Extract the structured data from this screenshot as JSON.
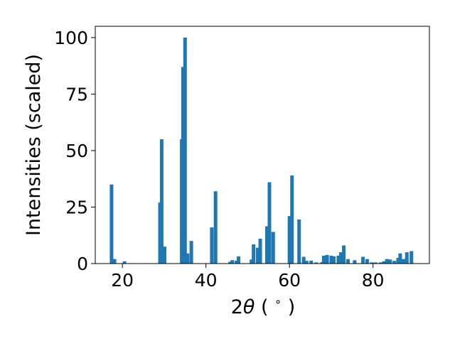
{
  "chart_data": {
    "type": "bar",
    "title": "",
    "xlabel_parts": [
      "2",
      "θ",
      " ( ",
      "∘",
      " )"
    ],
    "ylabel": "Intensities (scaled)",
    "xlim": [
      13.5,
      93.5
    ],
    "ylim": [
      0,
      105
    ],
    "xticks": [
      20,
      40,
      60,
      80
    ],
    "yticks": [
      0,
      25,
      50,
      75,
      100
    ],
    "bar_width_deg": 0.85,
    "bar_color": "#1f77b4",
    "grid": false,
    "legend": false,
    "x": [
      17.4,
      17.8,
      18.1,
      20.5,
      29.0,
      29.4,
      30.1,
      34.2,
      34.5,
      35.0,
      35.6,
      36.5,
      41.4,
      42.3,
      45.8,
      46.3,
      47.3,
      47.8,
      50.9,
      51.4,
      52.4,
      53.0,
      54.6,
      55.2,
      56.1,
      60.0,
      60.6,
      62.3,
      63.4,
      64.1,
      65.2,
      66.4,
      67.8,
      68.2,
      69.0,
      70.0,
      70.6,
      71.7,
      72.3,
      73.0,
      74.0,
      75.6,
      77.6,
      78.6,
      79.7,
      80.6,
      81.8,
      82.6,
      83.3,
      84.1,
      85.1,
      86.0,
      86.5,
      87.3,
      88.1,
      89.2
    ],
    "values": [
      35,
      1.5,
      2,
      1,
      27,
      55,
      7.5,
      55,
      87,
      100,
      4.5,
      10,
      16,
      32,
      0.8,
      1.5,
      1.3,
      3.2,
      1.8,
      8.5,
      7,
      11,
      16.5,
      36,
      14,
      21,
      39,
      19.5,
      3,
      1.2,
      1.3,
      0.5,
      0.6,
      3.5,
      3.8,
      3.5,
      3.2,
      3.5,
      5,
      8,
      2,
      1.5,
      3,
      2,
      0.5,
      0.5,
      0.5,
      1,
      2,
      1.8,
      1.2,
      2.5,
      4.5,
      2,
      5,
      5.5
    ]
  }
}
